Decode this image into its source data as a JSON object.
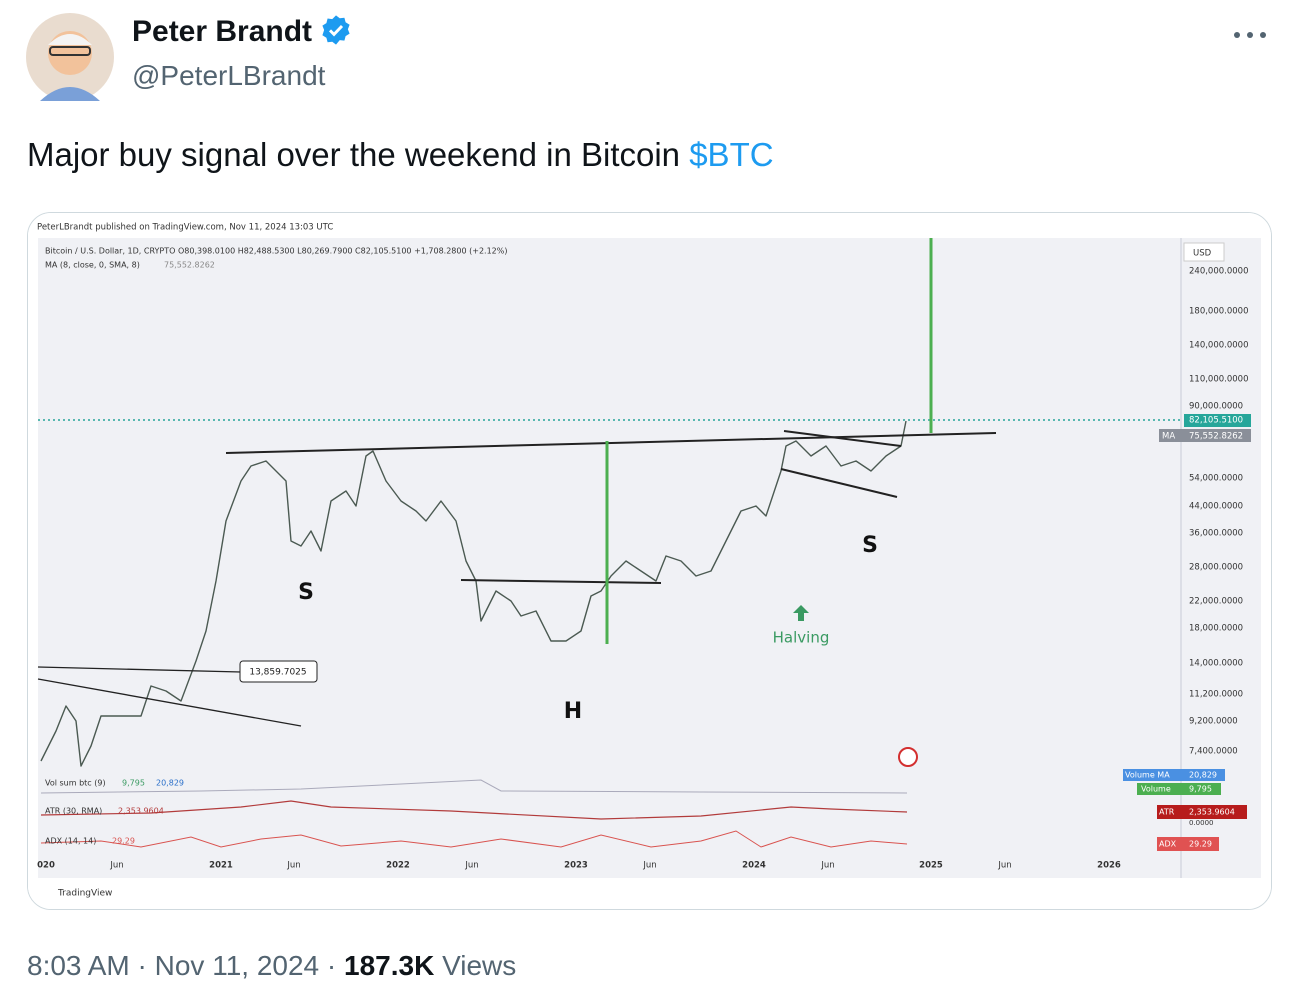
{
  "tweet": {
    "author": {
      "name": "Peter Brandt",
      "handle": "@PeterLBrandt"
    },
    "text": "Major buy signal over the weekend in Bitcoin ",
    "cashtag": "$BTC",
    "meta": {
      "time": "8:03 AM",
      "separator": "·",
      "date": "Nov 11, 2024",
      "views": "187.3K",
      "views_label": "Views"
    }
  },
  "chart_image": {
    "published": "PeterLBrandt published on TradingView.com, Nov 11, 2024 13:03 UTC",
    "legend": [
      "Bitcoin / U.S. Dollar, 1D, CRYPTO  O80,398.0100  H82,488.5300  L80,269.7900  C82,105.5100  +1,708.2800 (+2.12%)",
      "MA (8, close, 0, SMA, 8)",
      "75,552.8262"
    ],
    "currency": "USD",
    "price_labels": [
      "240,000.0000",
      "180,000.0000",
      "140,000.0000",
      "110,000.0000",
      "90,000.0000",
      "54,000.0000",
      "44,000.0000",
      "36,000.0000",
      "28,000.0000",
      "22,000.0000",
      "18,000.0000",
      "14,000.0000",
      "11,200.0000",
      "9,200.0000",
      "7,400.0000"
    ],
    "last_price": "82,105.5100",
    "ma_tag": "MA",
    "ma_value": "75,552.8262",
    "annotations": {
      "level": "13,859.7025",
      "left_shoulder": "S",
      "right_shoulder": "S",
      "head": "H",
      "halving": "Halving"
    },
    "indicators": {
      "volume": {
        "label": "Vol sum btc (9)",
        "value": "9,795",
        "ma": "20,829",
        "tag_ma": "Volume MA",
        "tag_volume": "Volume"
      },
      "atr": {
        "label": "ATR (30, RMA)",
        "value": "2,353.9604",
        "tag": "ATR",
        "zero": "0.0000"
      },
      "adx": {
        "label": "ADX (14, 14)",
        "value": "29.29",
        "tag": "ADX"
      }
    },
    "time_labels": [
      "020",
      "Jun",
      "2021",
      "Jun",
      "2022",
      "Jun",
      "2023",
      "Jun",
      "2024",
      "Jun",
      "2025",
      "Jun",
      "2026"
    ],
    "brand": "TradingView"
  }
}
